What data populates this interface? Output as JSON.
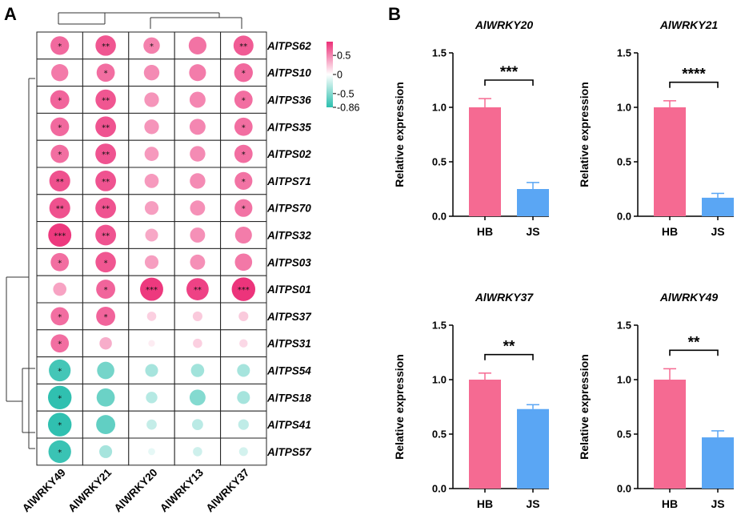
{
  "panel_labels": {
    "a": "A",
    "b": "B"
  },
  "chart_data": [
    {
      "type": "heatmap",
      "title": "",
      "style": "bubble",
      "rows": [
        "AlTPS62",
        "AlTPS10",
        "AlTPS36",
        "AlTPS35",
        "AlTPS02",
        "AlTPS71",
        "AlTPS70",
        "AlTPS32",
        "AlTPS03",
        "AlTPS01",
        "AlTPS37",
        "AlTPS31",
        "AlTPS54",
        "AlTPS18",
        "AlTPS41",
        "AlTPS57"
      ],
      "columns": [
        "AlWRKY49",
        "AlWRKY21",
        "AlWRKY20",
        "AlWRKY13",
        "AlWRKY37"
      ],
      "values": [
        [
          0.62,
          0.7,
          0.52,
          0.58,
          0.68
        ],
        [
          0.55,
          0.6,
          0.48,
          0.54,
          0.62
        ],
        [
          0.64,
          0.7,
          0.44,
          0.5,
          0.6
        ],
        [
          0.62,
          0.71,
          0.44,
          0.5,
          0.6
        ],
        [
          0.6,
          0.71,
          0.42,
          0.48,
          0.6
        ],
        [
          0.72,
          0.71,
          0.42,
          0.48,
          0.58
        ],
        [
          0.72,
          0.71,
          0.4,
          0.46,
          0.58
        ],
        [
          0.82,
          0.71,
          0.36,
          0.46,
          0.54
        ],
        [
          0.6,
          0.7,
          0.4,
          0.46,
          0.56
        ],
        [
          0.38,
          0.64,
          0.82,
          0.78,
          0.84
        ],
        [
          0.6,
          0.64,
          0.2,
          0.22,
          0.22
        ],
        [
          0.6,
          0.34,
          0.08,
          0.2,
          0.16
        ],
        [
          -0.76,
          -0.56,
          -0.36,
          -0.38,
          -0.36
        ],
        [
          -0.84,
          -0.6,
          -0.3,
          -0.5,
          -0.36
        ],
        [
          -0.84,
          -0.64,
          -0.24,
          -0.28,
          -0.26
        ],
        [
          -0.8,
          -0.36,
          -0.1,
          -0.2,
          -0.18
        ]
      ],
      "significance": [
        [
          "*",
          "**",
          "*",
          "",
          "**"
        ],
        [
          "",
          "*",
          "",
          "",
          "*"
        ],
        [
          "*",
          "**",
          "",
          "",
          "*"
        ],
        [
          "*",
          "**",
          "",
          "",
          "*"
        ],
        [
          "*",
          "**",
          "",
          "",
          "*"
        ],
        [
          "**",
          "**",
          "",
          "",
          "*"
        ],
        [
          "**",
          "**",
          "",
          "",
          "*"
        ],
        [
          "***",
          "**",
          "",
          "",
          ""
        ],
        [
          "*",
          "*",
          "",
          "",
          ""
        ],
        [
          "",
          "*",
          "***",
          "**",
          "***"
        ],
        [
          "*",
          "*",
          "",
          "",
          ""
        ],
        [
          "*",
          "",
          "",
          "",
          ""
        ],
        [
          "*",
          "",
          "",
          "",
          ""
        ],
        [
          "*",
          "",
          "",
          "",
          ""
        ],
        [
          "*",
          "",
          "",
          "",
          ""
        ],
        [
          "*",
          "",
          "",
          "",
          ""
        ]
      ],
      "colorbar": {
        "min": -0.86,
        "max": 0.86,
        "ticks": [
          "0.5",
          "0",
          "-0.5",
          "-0.86"
        ],
        "low_color": "#2bbfae",
        "mid_color": "#ffffff",
        "high_color": "#ec2f78"
      }
    },
    {
      "type": "bar",
      "title": "AlWRKY20",
      "categories": [
        "HB",
        "JS"
      ],
      "values": [
        1.0,
        0.25
      ],
      "errors": [
        0.08,
        0.06
      ],
      "ylabel": "Relative expression",
      "ylim": [
        0,
        1.5
      ],
      "yticks": [
        "0.0",
        "0.5",
        "1.0",
        "1.5"
      ],
      "significance": "***",
      "colors": [
        "#f56a92",
        "#5aa6f4"
      ]
    },
    {
      "type": "bar",
      "title": "AlWRKY21",
      "categories": [
        "HB",
        "JS"
      ],
      "values": [
        1.0,
        0.17
      ],
      "errors": [
        0.06,
        0.04
      ],
      "ylabel": "Relative expression",
      "ylim": [
        0,
        1.5
      ],
      "yticks": [
        "0.0",
        "0.5",
        "1.0",
        "1.5"
      ],
      "significance": "****",
      "colors": [
        "#f56a92",
        "#5aa6f4"
      ]
    },
    {
      "type": "bar",
      "title": "AlWRKY37",
      "categories": [
        "HB",
        "JS"
      ],
      "values": [
        1.0,
        0.73
      ],
      "errors": [
        0.06,
        0.04
      ],
      "ylabel": "Relative expression",
      "ylim": [
        0,
        1.5
      ],
      "yticks": [
        "0.0",
        "0.5",
        "1.0",
        "1.5"
      ],
      "significance": "**",
      "colors": [
        "#f56a92",
        "#5aa6f4"
      ]
    },
    {
      "type": "bar",
      "title": "AlWRKY49",
      "categories": [
        "HB",
        "JS"
      ],
      "values": [
        1.0,
        0.47
      ],
      "errors": [
        0.1,
        0.06
      ],
      "ylabel": "Relative expression",
      "ylim": [
        0,
        1.5
      ],
      "yticks": [
        "0.0",
        "0.5",
        "1.0",
        "1.5"
      ],
      "significance": "**",
      "colors": [
        "#f56a92",
        "#5aa6f4"
      ]
    }
  ]
}
